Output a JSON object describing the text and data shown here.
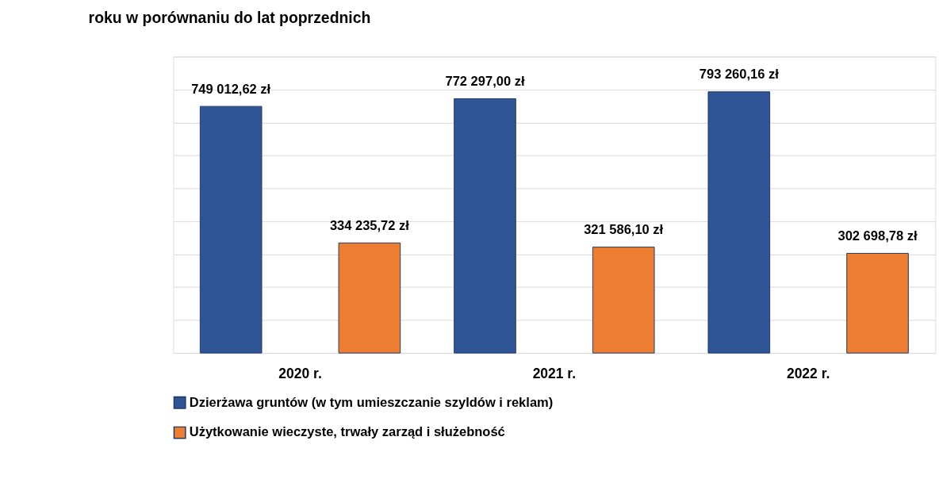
{
  "chart_data": {
    "type": "bar",
    "title": "roku w porównaniu do lat poprzednich",
    "categories": [
      "2020 r.",
      "2021 r.",
      "2022 r."
    ],
    "series": [
      {
        "name": "Dzierżawa gruntów (w tym umieszczanie szyldów i reklam)",
        "color": "#2f5597",
        "values": [
          749012.62,
          772297.0,
          793260.16
        ],
        "value_labels": [
          "749 012,62 zł",
          "772 297,00 zł",
          "793 260,16 zł"
        ]
      },
      {
        "name": "Użytkowanie wieczyste, trwały zarząd i służebność",
        "color": "#ed7d31",
        "values": [
          334235.72,
          321586.1,
          302698.78
        ],
        "value_labels": [
          "334 235,72 zł",
          "321 586,10 zł",
          "302 698,78 zł"
        ]
      }
    ],
    "ylim": [
      0,
      900000
    ],
    "yticks": [
      {
        "value": 0,
        "label": null
      },
      {
        "value": 100000,
        "label": null
      },
      {
        "value": 200000,
        "label": null
      },
      {
        "value": 300000,
        "label": null
      },
      {
        "value": 400000,
        "label": null
      },
      {
        "value": 500000,
        "label": null
      },
      {
        "value": 600000,
        "label": null
      },
      {
        "value": 700000,
        "label": null
      },
      {
        "value": 800000,
        "label": null
      },
      {
        "value": 900000,
        "label": null
      }
    ],
    "grid": "y",
    "legend": "bottom",
    "tick_labels": "x"
  }
}
